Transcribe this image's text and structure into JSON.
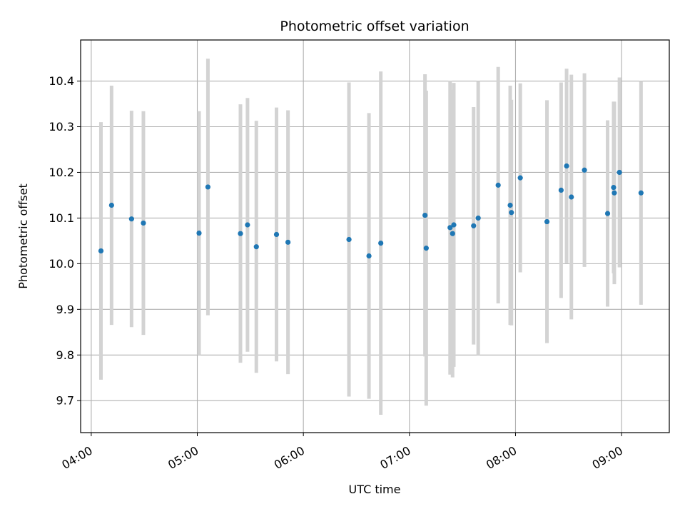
{
  "chart_data": {
    "type": "scatter",
    "title": "Photometric offset variation",
    "xlabel": "UTC time",
    "ylabel": "Photometric offset",
    "x_ticks": [
      "04:00",
      "05:00",
      "06:00",
      "07:00",
      "08:00",
      "09:00"
    ],
    "y_ticks": [
      "9.7",
      "9.8",
      "9.9",
      "10.0",
      "10.1",
      "10.2",
      "10.3",
      "10.4"
    ],
    "xlim": [
      "03:54",
      "09:27"
    ],
    "ylim": [
      9.63,
      10.49
    ],
    "grid": true,
    "colors": {
      "point": "#1f77b4",
      "errorbar": "#d3d3d3",
      "grid": "#b0b0b0"
    },
    "points": [
      {
        "x": "04:05:30",
        "y": 10.028,
        "err": 0.282
      },
      {
        "x": "04:11:30",
        "y": 10.128,
        "err": 0.262
      },
      {
        "x": "04:22:48",
        "y": 10.098,
        "err": 0.237
      },
      {
        "x": "04:29:30",
        "y": 10.089,
        "err": 0.245
      },
      {
        "x": "05:01:00",
        "y": 10.067,
        "err": 0.267
      },
      {
        "x": "05:06:00",
        "y": 10.168,
        "err": 0.281
      },
      {
        "x": "05:24:24",
        "y": 10.066,
        "err": 0.283
      },
      {
        "x": "05:28:24",
        "y": 10.085,
        "err": 0.278
      },
      {
        "x": "05:33:24",
        "y": 10.037,
        "err": 0.276
      },
      {
        "x": "05:44:48",
        "y": 10.064,
        "err": 0.278
      },
      {
        "x": "05:51:18",
        "y": 10.047,
        "err": 0.289
      },
      {
        "x": "06:25:48",
        "y": 10.053,
        "err": 0.344
      },
      {
        "x": "06:37:06",
        "y": 10.017,
        "err": 0.313
      },
      {
        "x": "06:43:48",
        "y": 10.045,
        "err": 0.376
      },
      {
        "x": "07:08:48",
        "y": 10.106,
        "err": 0.309
      },
      {
        "x": "07:09:30",
        "y": 10.034,
        "err": 0.345
      },
      {
        "x": "07:23:00",
        "y": 10.079,
        "err": 0.322
      },
      {
        "x": "07:24:24",
        "y": 10.066,
        "err": 0.315
      },
      {
        "x": "07:25:06",
        "y": 10.085,
        "err": 0.311
      },
      {
        "x": "07:36:18",
        "y": 10.083,
        "err": 0.26
      },
      {
        "x": "07:38:54",
        "y": 10.1,
        "err": 0.3
      },
      {
        "x": "07:50:12",
        "y": 10.172,
        "err": 0.259
      },
      {
        "x": "07:57:00",
        "y": 10.128,
        "err": 0.262
      },
      {
        "x": "07:57:42",
        "y": 10.112,
        "err": 0.247
      },
      {
        "x": "08:02:42",
        "y": 10.188,
        "err": 0.207
      },
      {
        "x": "08:17:48",
        "y": 10.092,
        "err": 0.266
      },
      {
        "x": "08:25:48",
        "y": 10.161,
        "err": 0.236
      },
      {
        "x": "08:28:54",
        "y": 10.214,
        "err": 0.213
      },
      {
        "x": "08:31:36",
        "y": 10.146,
        "err": 0.268
      },
      {
        "x": "08:39:00",
        "y": 10.205,
        "err": 0.212
      },
      {
        "x": "08:52:06",
        "y": 10.11,
        "err": 0.204
      },
      {
        "x": "08:55:30",
        "y": 10.167,
        "err": 0.188
      },
      {
        "x": "08:55:54",
        "y": 10.155,
        "err": 0.2
      },
      {
        "x": "08:58:48",
        "y": 10.2,
        "err": 0.208
      },
      {
        "x": "09:11:00",
        "y": 10.155,
        "err": 0.245
      }
    ]
  }
}
